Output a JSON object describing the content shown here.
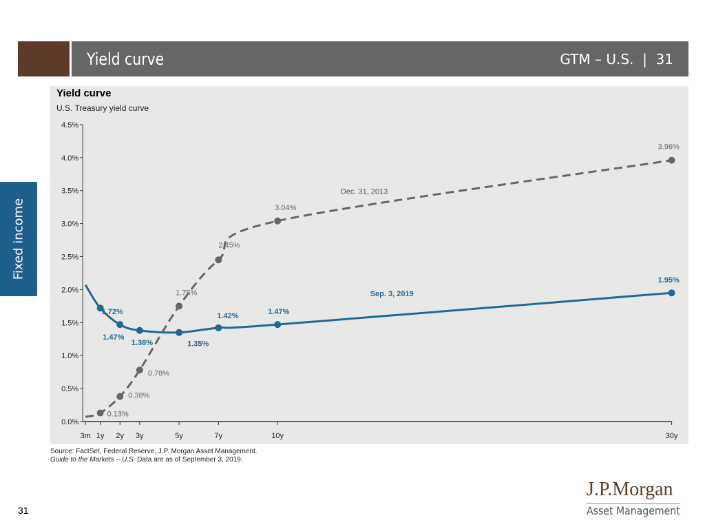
{
  "header": {
    "title": "Yield curve",
    "section": "GTM – U.S.",
    "page": "31"
  },
  "side_tab": "Fixed income",
  "source_line1": "Source: FactSet, Federal Reserve, J.P. Morgan Asset Management.",
  "source_line2_italic": "Guide to the Markets – U.S.",
  "source_line2": " Data are as of September 3, 2019.",
  "logo": {
    "name": "J.P.Morgan",
    "sub": "Asset Management"
  },
  "page_number": "31",
  "chart_data": {
    "type": "line",
    "title": "Yield curve",
    "subtitle": "U.S. Treasury yield curve",
    "x_categories": [
      "3m",
      "1y",
      "2y",
      "3y",
      "5y",
      "7y",
      "10y",
      "30y"
    ],
    "x_years": [
      0.25,
      1,
      2,
      3,
      5,
      7,
      10,
      30
    ],
    "yticks": [
      "0.0%",
      "0.5%",
      "1.0%",
      "1.5%",
      "2.0%",
      "2.5%",
      "3.0%",
      "3.5%",
      "4.0%",
      "4.5%"
    ],
    "ylim": [
      0,
      4.5
    ],
    "grid": false,
    "series": [
      {
        "name": "Dec. 31, 2013",
        "color": "#666666",
        "dash": true,
        "values": [
          0.07,
          0.13,
          0.38,
          0.78,
          1.75,
          2.45,
          3.04,
          3.96
        ],
        "labels": [
          "",
          "0.13%",
          "0.38%",
          "0.78%",
          "1.75%",
          "2.45%",
          "3.04%",
          "3.96%"
        ]
      },
      {
        "name": "Sep. 3, 2019",
        "color": "#1f6a93",
        "dash": false,
        "values": [
          2.07,
          1.72,
          1.47,
          1.38,
          1.35,
          1.42,
          1.47,
          1.95
        ],
        "labels": [
          "",
          "1.72%",
          "1.47%",
          "1.38%",
          "1.35%",
          "1.42%",
          "1.47%",
          "1.95%"
        ]
      }
    ]
  }
}
